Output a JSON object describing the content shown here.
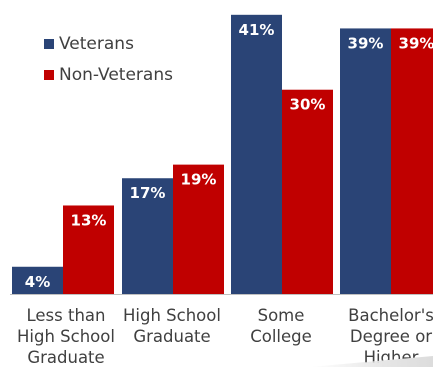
{
  "chart_data": {
    "type": "bar",
    "categories": [
      [
        "Less than",
        "High School",
        "Graduate"
      ],
      [
        "High School",
        "Graduate"
      ],
      [
        "Some",
        "College"
      ],
      [
        "Bachelor's",
        "Degree or",
        "Higher"
      ]
    ],
    "series": [
      {
        "name": "Veterans",
        "color": "#2a4476",
        "values": [
          4,
          17,
          41,
          39
        ],
        "labels": [
          "4%",
          "17%",
          "41%",
          "39%"
        ]
      },
      {
        "name": "Non-Veterans",
        "color": "#c00000",
        "values": [
          13,
          19,
          30,
          39
        ],
        "labels": [
          "13%",
          "19%",
          "30%",
          "39%"
        ]
      }
    ],
    "ylim": [
      0,
      42
    ],
    "grid": false,
    "legend_position": "top-left",
    "axis_color": "#c0c0c0"
  }
}
